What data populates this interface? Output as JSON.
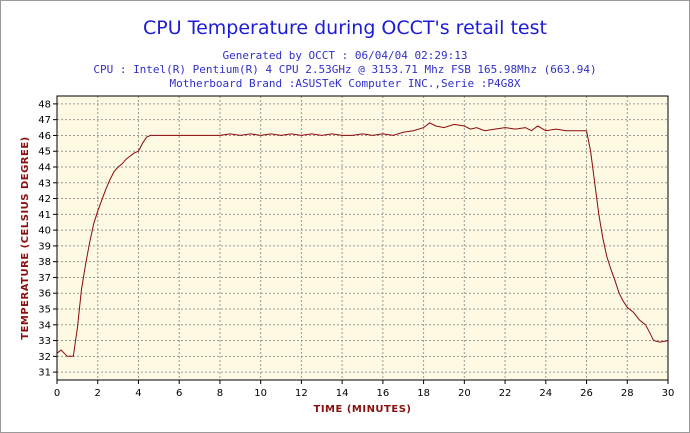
{
  "chart_data": {
    "type": "line",
    "title": "CPU Temperature during OCCT's retail test",
    "subtitle_lines": [
      "Generated by OCCT : 06/04/04 02:29:13",
      "CPU : Intel(R) Pentium(R) 4 CPU 2.53GHz @ 3153.71 Mhz FSB 165.98Mhz (663.94)",
      "Motherboard Brand :ASUSTeK Computer INC.,Serie :P4G8X"
    ],
    "xlabel": "Time (minutes)",
    "ylabel": "Temperature (Celsius degree)",
    "xlim": [
      0,
      30
    ],
    "ylim": [
      30.5,
      48.5
    ],
    "x_ticks": [
      0,
      2,
      4,
      6,
      8,
      10,
      12,
      14,
      16,
      18,
      20,
      22,
      24,
      26,
      28,
      30
    ],
    "y_ticks": [
      31,
      32,
      33,
      34,
      35,
      36,
      37,
      38,
      39,
      40,
      41,
      42,
      43,
      44,
      45,
      46,
      47,
      48
    ],
    "grid": true,
    "line_color": "#8b0a0a",
    "plot_background": "#fdf9e3",
    "series": [
      {
        "x": [
          0,
          0.2,
          0.5,
          0.6,
          0.8,
          1.0,
          1.2,
          1.4,
          1.6,
          1.8,
          2.0,
          2.2,
          2.4,
          2.6,
          2.8,
          3.0,
          3.2,
          3.4,
          3.6,
          3.8,
          4.0,
          4.2,
          4.4,
          4.6,
          4.8,
          5.0,
          6.0,
          7.0,
          8.0,
          8.5,
          9.0,
          9.5,
          10.0,
          10.5,
          11.0,
          11.5,
          12.0,
          12.5,
          13.0,
          13.5,
          14.0,
          14.5,
          15.0,
          15.5,
          16.0,
          16.5,
          17.0,
          17.5,
          18.0,
          18.3,
          18.6,
          19.0,
          19.5,
          20.0,
          20.3,
          20.6,
          21.0,
          21.5,
          22.0,
          22.5,
          23.0,
          23.3,
          23.6,
          24.0,
          24.5,
          25.0,
          25.5,
          26.0,
          26.2,
          26.4,
          26.6,
          26.8,
          27.0,
          27.2,
          27.4,
          27.6,
          27.8,
          28.0,
          28.3,
          28.6,
          28.9,
          29.1,
          29.3,
          29.6,
          30.0
        ],
        "y": [
          32.2,
          32.4,
          32.0,
          32.0,
          32.0,
          33.8,
          36.2,
          37.8,
          39.2,
          40.4,
          41.2,
          41.9,
          42.6,
          43.2,
          43.7,
          44.0,
          44.2,
          44.5,
          44.7,
          44.9,
          45.0,
          45.5,
          45.9,
          46.0,
          46.0,
          46.0,
          46.0,
          46.0,
          46.0,
          46.1,
          46.0,
          46.1,
          46.0,
          46.1,
          46.0,
          46.1,
          46.0,
          46.1,
          46.0,
          46.1,
          46.0,
          46.0,
          46.1,
          46.0,
          46.1,
          46.0,
          46.2,
          46.3,
          46.5,
          46.8,
          46.6,
          46.5,
          46.7,
          46.6,
          46.4,
          46.5,
          46.3,
          46.4,
          46.5,
          46.4,
          46.5,
          46.3,
          46.6,
          46.3,
          46.4,
          46.3,
          46.3,
          46.3,
          45.0,
          43.0,
          41.0,
          39.5,
          38.3,
          37.5,
          36.8,
          36.0,
          35.5,
          35.1,
          34.8,
          34.3,
          34.0,
          33.5,
          33.0,
          32.9,
          33.0
        ]
      }
    ]
  }
}
